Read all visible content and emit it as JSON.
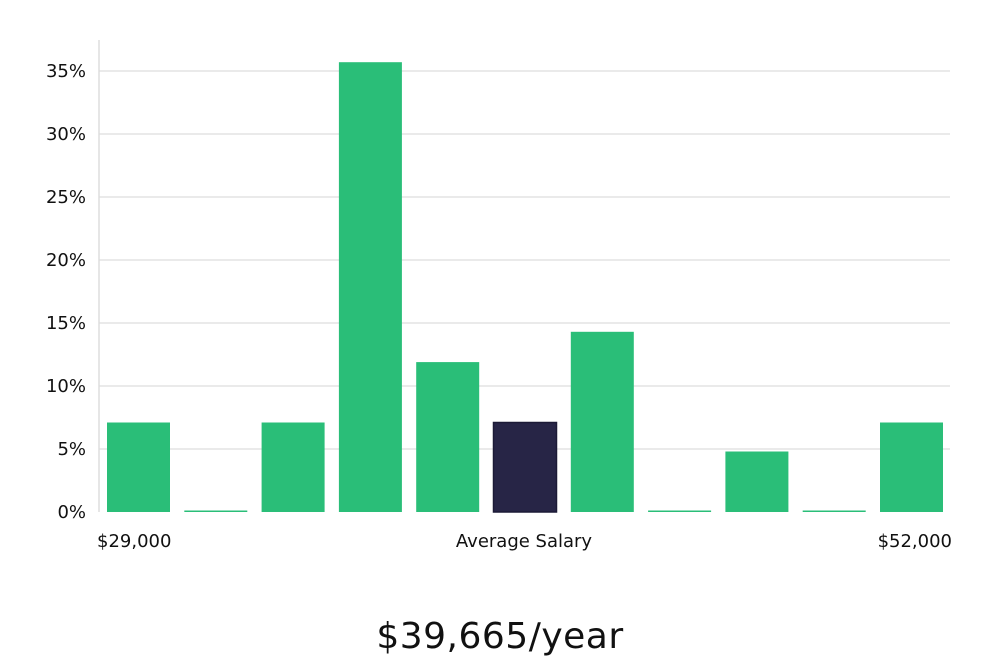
{
  "chart_data": {
    "type": "bar",
    "title": "",
    "xlabel": "",
    "ylabel": "",
    "x_labels": {
      "min": "$29,000",
      "center": "Average Salary",
      "max": "$52,000"
    },
    "y_ticks": [
      "0%",
      "5%",
      "10%",
      "15%",
      "20%",
      "25%",
      "30%",
      "35%"
    ],
    "y_tick_values": [
      0,
      5,
      10,
      15,
      20,
      25,
      30,
      35
    ],
    "ylim": [
      0,
      36.5
    ],
    "grid": true,
    "legend": "none",
    "values": [
      7.1,
      0,
      7.1,
      35.7,
      11.9,
      7.1,
      14.3,
      0,
      4.8,
      0,
      7.1
    ],
    "highlight_index": 5,
    "colors": {
      "bar": "#2abe78",
      "highlight": "#272546",
      "grid": "#e3e3e3",
      "axis": "#dddddd"
    }
  },
  "summary": {
    "average_salary": "$39,665/year"
  }
}
